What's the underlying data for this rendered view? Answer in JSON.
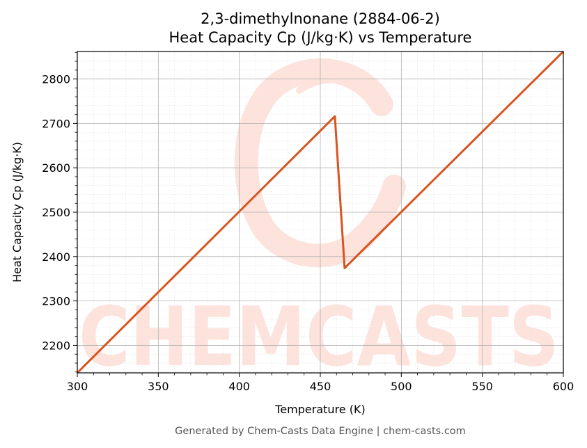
{
  "chart_data": {
    "type": "line",
    "title_line1": "2,3-dimethylnonane (2884-06-2)",
    "title_line2": "Heat Capacity Cp (J/kg·K) vs Temperature",
    "xlabel": "Temperature (K)",
    "ylabel": "Heat Capacity Cp (J/kg·K)",
    "xlim": [
      300,
      600
    ],
    "ylim": [
      2138,
      2862
    ],
    "xticks": [
      300,
      350,
      400,
      450,
      500,
      550,
      600
    ],
    "yticks": [
      2200,
      2300,
      2400,
      2500,
      2600,
      2700,
      2800
    ],
    "grid": true,
    "series": [
      {
        "color": "#d9531e",
        "x": [
          300,
          459,
          465,
          600
        ],
        "y": [
          2138,
          2716,
          2374,
          2862
        ]
      }
    ]
  },
  "watermark": {
    "text": "CHEMCASTS",
    "color": "#fde3dc"
  },
  "footer": "Generated by Chem-Casts Data Engine | chem-casts.com"
}
